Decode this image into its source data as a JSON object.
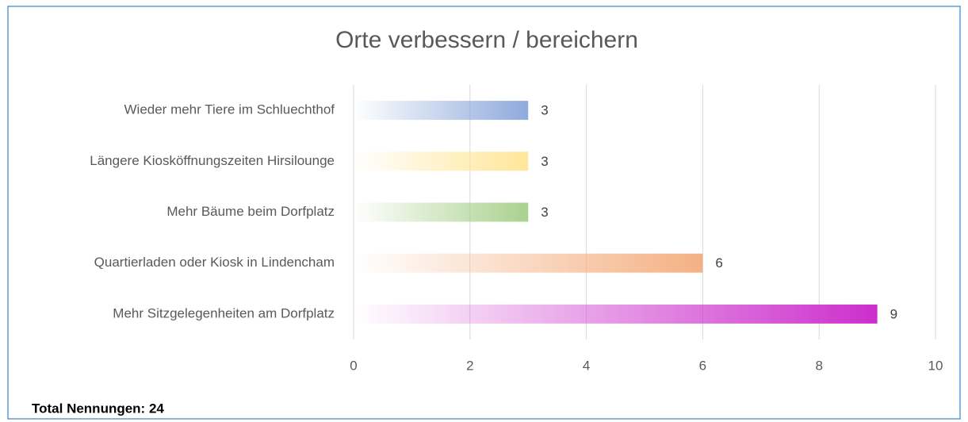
{
  "chart_data": {
    "type": "bar",
    "orientation": "horizontal",
    "title": "Orte verbessern / bereichern",
    "categories": [
      "Wieder mehr Tiere im Schluechthof",
      "Längere Kiosköffnungszeiten Hirsilounge",
      "Mehr Bäume beim Dorfplatz",
      "Quartierladen oder Kiosk in Lindencham",
      "Mehr Sitzgelegenheiten am Dorfplatz"
    ],
    "values": [
      3,
      3,
      3,
      6,
      9
    ],
    "colors": [
      "#8faadc",
      "#ffe699",
      "#a9d18e",
      "#f4b183",
      "#cc2ecc"
    ],
    "xlim": [
      0,
      10
    ],
    "xticks": [
      0,
      2,
      4,
      6,
      8,
      10
    ],
    "grid": true
  },
  "footer": "Total Nennungen: 24"
}
